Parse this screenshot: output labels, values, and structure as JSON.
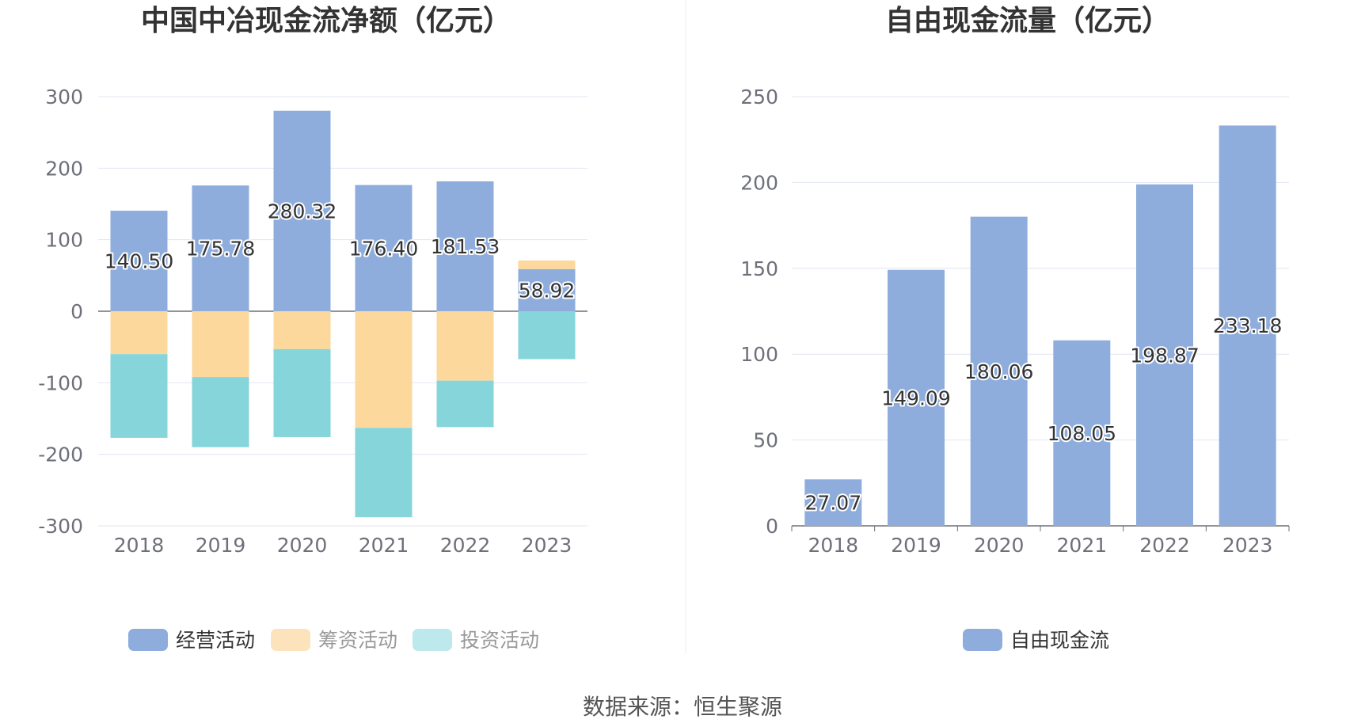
{
  "chart_data": [
    {
      "type": "bar",
      "stacked": true,
      "title": "中国中冶现金流净额（亿元）",
      "categories": [
        "2018",
        "2019",
        "2020",
        "2021",
        "2022",
        "2023"
      ],
      "ylim": [
        -300,
        300
      ],
      "yticks": [
        "300",
        "200",
        "100",
        "0",
        "-100",
        "-200",
        "-300"
      ],
      "ytick_values": [
        300,
        200,
        100,
        0,
        -100,
        -200,
        -300
      ],
      "series": [
        {
          "name": "经营活动",
          "color": "#8eaddc",
          "values": [
            140.5,
            175.78,
            280.32,
            176.4,
            181.53,
            58.92
          ],
          "labels": [
            "140.50",
            "175.78",
            "280.32",
            "176.40",
            "181.53",
            "58.92"
          ]
        },
        {
          "name": "筹资活动",
          "color": "#fdd89c",
          "values": [
            -60,
            -92,
            -53,
            -163,
            -97,
            12
          ]
        },
        {
          "name": "投资活动",
          "color": "#86d5da",
          "values": [
            -117,
            -98,
            -123,
            -125,
            -65,
            -67
          ]
        }
      ],
      "legend": [
        {
          "name": "经营活动",
          "color": "#8eaddc",
          "text_color": "#333333"
        },
        {
          "name": "筹资活动",
          "color": "#fde3bb",
          "text_color": "#999999"
        },
        {
          "name": "投资活动",
          "color": "#bde9ec",
          "text_color": "#999999"
        }
      ],
      "grid": true,
      "legend_position": "bottom"
    },
    {
      "type": "bar",
      "title": "自由现金流量（亿元）",
      "categories": [
        "2018",
        "2019",
        "2020",
        "2021",
        "2022",
        "2023"
      ],
      "ylim": [
        0,
        250
      ],
      "yticks": [
        "250",
        "200",
        "150",
        "100",
        "50",
        "0"
      ],
      "ytick_values": [
        250,
        200,
        150,
        100,
        50,
        0
      ],
      "series": [
        {
          "name": "自由现金流",
          "color": "#8eaddc",
          "values": [
            27.07,
            149.09,
            180.06,
            108.05,
            198.87,
            233.18
          ],
          "labels": [
            "27.07",
            "149.09",
            "180.06",
            "108.05",
            "198.87",
            "233.18"
          ]
        }
      ],
      "legend": [
        {
          "name": "自由现金流",
          "color": "#8eaddc",
          "text_color": "#333333"
        }
      ],
      "grid": true,
      "legend_position": "bottom"
    }
  ],
  "source": "数据来源：恒生聚源"
}
